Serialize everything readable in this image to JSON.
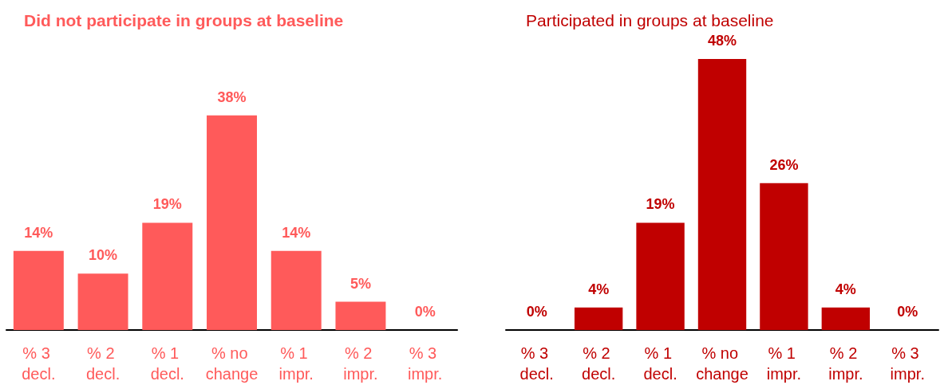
{
  "chart_data": [
    {
      "type": "bar",
      "title": "Did not participate in groups at baseline",
      "categories": [
        "% 3 decl.",
        "% 2 decl.",
        "% 1 decl.",
        "% no change",
        "% 1 impr.",
        "% 2 impr.",
        "% 3 impr."
      ],
      "values": [
        14,
        10,
        19,
        38,
        14,
        5,
        0
      ],
      "color": "#ff5a5a",
      "value_labels": [
        "14%",
        "10%",
        "19%",
        "38%",
        "14%",
        "5%",
        "0%"
      ],
      "tick_labels": "x"
    },
    {
      "type": "bar",
      "title": "Participated in groups at baseline",
      "categories": [
        "% 3 decl.",
        "% 2 decl.",
        "% 1 decl.",
        "% no change",
        "% 1 impr.",
        "% 2 impr.",
        "% 3 impr."
      ],
      "values": [
        0,
        4,
        19,
        48,
        26,
        4,
        0
      ],
      "color": "#c00000",
      "value_labels": [
        "0%",
        "4%",
        "19%",
        "48%",
        "26%",
        "4%",
        "0%"
      ],
      "tick_labels": "x"
    }
  ]
}
